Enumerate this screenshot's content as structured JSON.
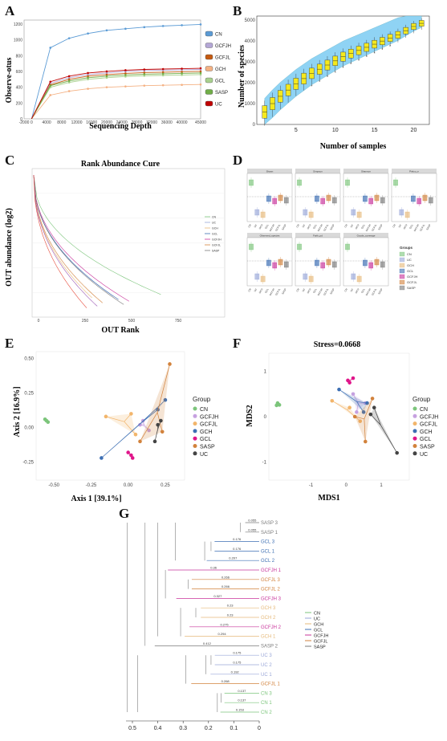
{
  "colors": {
    "CN": "#7cc57b",
    "UC": "#9aa7d8",
    "GCH": "#e6b97a",
    "GCL": "#3d6fb3",
    "GCFJH": "#c8349b",
    "GCFJL": "#d2823c",
    "SASP": "#7a7a7a",
    "GCFJL_rare": "#b0e3c9"
  },
  "panels": {
    "A": "A",
    "B": "B",
    "C": "C",
    "D": "D",
    "E": "E",
    "F": "F",
    "G": "G"
  },
  "chart_data": [
    {
      "id": "A",
      "type": "line",
      "xlabel": "Sequencing Depth",
      "ylabel": "Observe-otus",
      "xlim": [
        -2000,
        45000
      ],
      "x_ticks": [
        "-2000",
        "0",
        "4000",
        "8000",
        "12000",
        "16000",
        "20000",
        "24000",
        "28000",
        "32000",
        "36000",
        "40000",
        "45000"
      ],
      "y_ticks": [
        "0",
        "200",
        "400",
        "600",
        "800",
        "1000",
        "1200"
      ],
      "ylim": [
        0,
        1250
      ],
      "x": [
        0,
        5000,
        10000,
        15000,
        20000,
        25000,
        30000,
        35000,
        40000,
        45000
      ],
      "series": [
        {
          "name": "CN",
          "color": "#5b9bd5",
          "values": [
            0,
            900,
            1020,
            1080,
            1120,
            1140,
            1160,
            1175,
            1185,
            1195
          ]
        },
        {
          "name": "GCFJH",
          "color": "#b4a7d6",
          "values": [
            0,
            450,
            520,
            560,
            580,
            600,
            610,
            615,
            620,
            625
          ]
        },
        {
          "name": "GCFJL",
          "color": "#c55a11",
          "values": [
            0,
            430,
            500,
            540,
            560,
            575,
            585,
            590,
            595,
            600
          ]
        },
        {
          "name": "GCH",
          "color": "#f4b183",
          "values": [
            0,
            300,
            350,
            380,
            400,
            410,
            420,
            425,
            430,
            435
          ]
        },
        {
          "name": "GCL",
          "color": "#a9d18e",
          "values": [
            0,
            400,
            460,
            500,
            520,
            535,
            545,
            550,
            555,
            560
          ]
        },
        {
          "name": "SASP",
          "color": "#70ad47",
          "values": [
            0,
            420,
            480,
            520,
            540,
            555,
            565,
            570,
            575,
            580
          ]
        },
        {
          "name": "UC",
          "color": "#c00000",
          "values": [
            0,
            470,
            540,
            580,
            600,
            615,
            625,
            630,
            635,
            640
          ]
        }
      ]
    },
    {
      "id": "B",
      "type": "box",
      "xlabel": "Number of samples",
      "ylabel": "Number of species",
      "x_ticks": [
        "5",
        "10",
        "15",
        "20"
      ],
      "y_ticks": [
        "0",
        "1000",
        "2000",
        "3000",
        "4000",
        "5000"
      ],
      "ylim": [
        0,
        5200
      ],
      "x": [
        1,
        2,
        3,
        4,
        5,
        6,
        7,
        8,
        9,
        10,
        11,
        12,
        13,
        14,
        15,
        16,
        17,
        18,
        19,
        20,
        21
      ],
      "median": [
        600,
        1000,
        1350,
        1650,
        1950,
        2200,
        2450,
        2650,
        2850,
        3050,
        3250,
        3400,
        3550,
        3700,
        3850,
        4000,
        4150,
        4300,
        4500,
        4700,
        4850
      ]
    },
    {
      "id": "C",
      "type": "line",
      "title": "Rank Abundance Cure",
      "xlabel": "OUT Rank",
      "ylabel": "OUT abundance (log2)",
      "x_ticks": [
        "0",
        "250",
        "500",
        "750"
      ],
      "series_names": [
        "CN",
        "UC",
        "GCH",
        "GCL",
        "GCFJH",
        "GCFJL",
        "SASP"
      ]
    },
    {
      "id": "D",
      "type": "box",
      "facets": [
        "Shann",
        "Simpson",
        "Shannon",
        "Pielou_e",
        "Observed_species",
        "Faith_pd",
        "Goods_coverage"
      ],
      "legend_title": "Groups",
      "groups": [
        "CN",
        "UC",
        "GCH",
        "GCL",
        "GCFJH",
        "GCFJL",
        "SASP"
      ]
    },
    {
      "id": "E",
      "type": "scatter",
      "xlabel": "Axis 1 [39.1%]",
      "ylabel": "Axis 2 [16.9%]",
      "x_ticks": [
        "-0.50",
        "-0.25",
        "0.00",
        "0.25"
      ],
      "y_ticks": [
        "0.50",
        "0.25",
        "0.00",
        "-0.25"
      ],
      "xlim": [
        -0.62,
        0.38
      ],
      "ylim": [
        -0.38,
        0.55
      ],
      "legend_title": "Group",
      "groups": [
        "CN",
        "GCFJH",
        "GCFJL",
        "GCH",
        "GCL",
        "SASP",
        "UC"
      ],
      "points": {
        "CN": [
          [
            -0.55,
            0.05
          ],
          [
            -0.56,
            0.06
          ],
          [
            -0.54,
            0.04
          ]
        ],
        "GCFJH": [
          [
            0.1,
            0.05
          ],
          [
            0.14,
            -0.02
          ],
          [
            0.08,
            0.02
          ]
        ],
        "GCFJL": [
          [
            -0.15,
            0.08
          ],
          [
            0.02,
            0.1
          ],
          [
            0.05,
            -0.05
          ]
        ],
        "GCH": [
          [
            0.2,
            0.13
          ],
          [
            0.25,
            0.2
          ],
          [
            -0.18,
            -0.22
          ]
        ],
        "GCL": [
          [
            0.02,
            -0.2
          ],
          [
            0.0,
            -0.18
          ],
          [
            0.03,
            -0.22
          ]
        ],
        "SASP": [
          [
            0.08,
            -0.1
          ],
          [
            0.23,
            -0.03
          ],
          [
            0.28,
            0.46
          ]
        ],
        "UC": [
          [
            0.2,
            0.02
          ],
          [
            0.22,
            0.05
          ],
          [
            0.18,
            -0.1
          ]
        ]
      }
    },
    {
      "id": "F",
      "type": "scatter",
      "title": "Stress=0.0668",
      "xlabel": "MDS1",
      "ylabel": "MDS2",
      "x_ticks": [
        "-1",
        "0",
        "1"
      ],
      "y_ticks": [
        "1",
        "0",
        "-1"
      ],
      "xlim": [
        -2.2,
        1.8
      ],
      "ylim": [
        -1.4,
        1.4
      ],
      "legend_title": "Group",
      "groups": [
        "CN",
        "GCFJH",
        "GCFJL",
        "GCH",
        "GCL",
        "SASP",
        "UC"
      ],
      "points": {
        "CN": [
          [
            -1.95,
            0.3
          ],
          [
            -1.9,
            0.26
          ],
          [
            -1.98,
            0.25
          ]
        ],
        "GCFJH": [
          [
            0.2,
            0.5
          ],
          [
            0.55,
            0.3
          ],
          [
            0.3,
            0.1
          ]
        ],
        "GCFJL": [
          [
            -0.4,
            0.35
          ],
          [
            0.1,
            0.2
          ],
          [
            0.4,
            -0.1
          ]
        ],
        "GCH": [
          [
            0.6,
            0.3
          ],
          [
            0.5,
            0.1
          ],
          [
            -0.2,
            0.6
          ]
        ],
        "GCL": [
          [
            0.05,
            0.8
          ],
          [
            0.2,
            0.85
          ],
          [
            0.1,
            0.75
          ]
        ],
        "SASP": [
          [
            0.55,
            -0.55
          ],
          [
            0.75,
            0.4
          ],
          [
            0.25,
            0.0
          ]
        ],
        "UC": [
          [
            0.8,
            0.2
          ],
          [
            1.45,
            -0.8
          ],
          [
            0.7,
            0.05
          ]
        ]
      }
    },
    {
      "id": "G",
      "type": "dendrogram",
      "x_ticks": [
        "0.5",
        "0.4",
        "0.3",
        "0.2",
        "0.1",
        "0"
      ],
      "legend": [
        "CN",
        "UC",
        "GCH",
        "GCL",
        "GCFJH",
        "GCFJL",
        "SASP"
      ],
      "leaves": [
        {
          "label": "SASP 3",
          "group": "SASP",
          "len": "0.055"
        },
        {
          "label": "SASP 1",
          "group": "SASP",
          "len": "0.055"
        },
        {
          "label": "GCL 3",
          "group": "GCL",
          "len": "0.176"
        },
        {
          "label": "GCL 1",
          "group": "GCL",
          "len": "0.176"
        },
        {
          "label": "GCL 2",
          "group": "GCL",
          "len": "0.207"
        },
        {
          "label": "GCFJH 1",
          "group": "GCFJH",
          "len": "0.36"
        },
        {
          "label": "GCFJL 3",
          "group": "GCFJL",
          "len": "0.266"
        },
        {
          "label": "GCFJL 2",
          "group": "GCFJL",
          "len": "0.266"
        },
        {
          "label": "GCFJH 3",
          "group": "GCFJH",
          "len": "0.327"
        },
        {
          "label": "GCH 3",
          "group": "GCH",
          "len": "0.23"
        },
        {
          "label": "GCH 2",
          "group": "GCH",
          "len": "0.23"
        },
        {
          "label": "GCFJH 2",
          "group": "GCFJH",
          "len": "0.275"
        },
        {
          "label": "GCH 1",
          "group": "GCH",
          "len": "0.294"
        },
        {
          "label": "SASP 2",
          "group": "SASP",
          "len": "0.412"
        },
        {
          "label": "UC 3",
          "group": "UC",
          "len": "0.175"
        },
        {
          "label": "UC 2",
          "group": "UC",
          "len": "0.175"
        },
        {
          "label": "UC 1",
          "group": "UC",
          "len": "0.192"
        },
        {
          "label": "GCFJL 1",
          "group": "GCFJL",
          "len": "0.268"
        },
        {
          "label": "CN 3",
          "group": "CN",
          "len": "0.137"
        },
        {
          "label": "CN 1",
          "group": "CN",
          "len": "0.137"
        },
        {
          "label": "CN 2",
          "group": "CN",
          "len": "0.153"
        }
      ]
    }
  ]
}
